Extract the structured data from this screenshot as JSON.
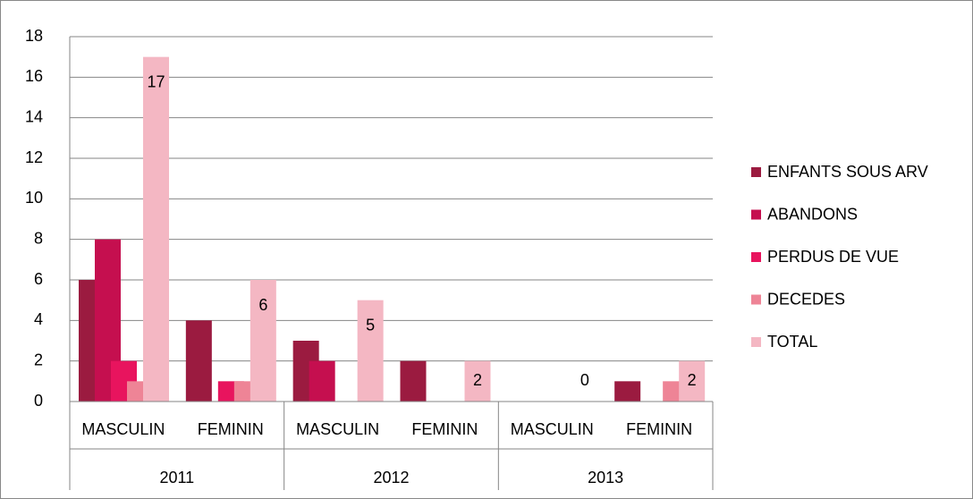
{
  "chart_data": {
    "type": "bar",
    "categories": [
      "MASCULIN",
      "FEMININ",
      "MASCULIN",
      "FEMININ",
      "MASCULIN",
      "FEMININ"
    ],
    "category_groups": [
      "2011",
      "2012",
      "2013"
    ],
    "series": [
      {
        "name": "ENFANTS SOUS ARV",
        "color": "#9b1b40",
        "values": [
          6,
          4,
          3,
          2,
          0,
          1
        ]
      },
      {
        "name": "ABANDONS",
        "color": "#c50f4f",
        "values": [
          8,
          0,
          2,
          0,
          0,
          0
        ]
      },
      {
        "name": "PERDUS DE VUE",
        "color": "#e8145e",
        "values": [
          2,
          1,
          0,
          0,
          0,
          0
        ]
      },
      {
        "name": "DECEDES",
        "color": "#ee8496",
        "values": [
          1,
          1,
          0,
          0,
          0,
          1
        ]
      },
      {
        "name": "TOTAL",
        "color": "#f4b7c3",
        "values": [
          17,
          6,
          5,
          2,
          0,
          2
        ]
      }
    ],
    "labeled_series": 4,
    "ylim": [
      0,
      18
    ],
    "yticks": [
      0,
      2,
      4,
      6,
      8,
      10,
      12,
      14,
      16,
      18
    ],
    "grid": true,
    "legend": "right"
  }
}
